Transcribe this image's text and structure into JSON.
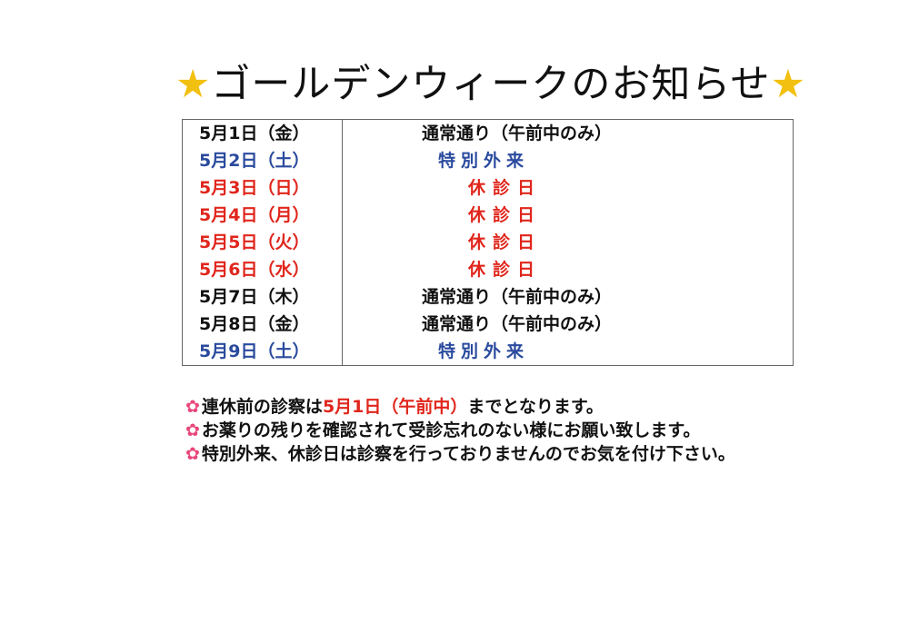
{
  "title": {
    "star_left": "★",
    "text": "ゴールデンウィークのお知らせ",
    "star_right": "★"
  },
  "colors": {
    "normal": "#111111",
    "special": "#2a4a9e",
    "closed": "#e0261c",
    "star": "#f2c010",
    "flower": "#e8467a"
  },
  "schedule": [
    {
      "date": "5月1日（金）",
      "status": "通常通り（午前中のみ）",
      "type": "normal"
    },
    {
      "date": "5月2日（土）",
      "status": "特別外来",
      "type": "special"
    },
    {
      "date": "5月3日（日）",
      "status": "休診日",
      "type": "closed"
    },
    {
      "date": "5月4日（月）",
      "status": "休診日",
      "type": "closed"
    },
    {
      "date": "5月5日（火）",
      "status": "休診日",
      "type": "closed"
    },
    {
      "date": "5月6日（水）",
      "status": "休診日",
      "type": "closed"
    },
    {
      "date": "5月7日（木）",
      "status": "通常通り（午前中のみ）",
      "type": "normal"
    },
    {
      "date": "5月8日（金）",
      "status": "通常通り（午前中のみ）",
      "type": "normal"
    },
    {
      "date": "5月9日（土）",
      "status": "特別外来",
      "type": "special"
    }
  ],
  "notes": {
    "bullet_icon": "flower-icon",
    "bullet": "✿",
    "line1_a": "連休前の診察は",
    "line1_b": "5月1日（午前中）",
    "line1_c": "までとなります。",
    "line2": "お薬りの残りを確認されて受診忘れのない様にお願い致します。",
    "line3": "特別外来、休診日は診察を行っておりませんのでお気を付け下さい。"
  }
}
